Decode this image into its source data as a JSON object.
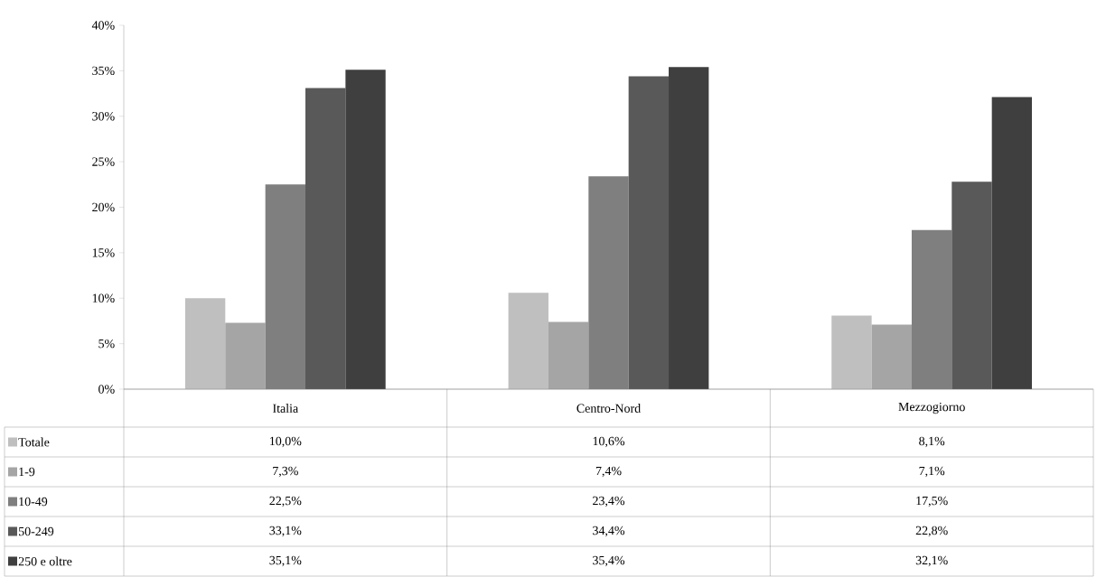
{
  "chart_data": {
    "type": "bar",
    "categories": [
      "Italia",
      "Centro-Nord",
      "Mezzogiorno"
    ],
    "series": [
      {
        "name": "Totale",
        "color": "#bfbfbf",
        "values": [
          10.0,
          10.6,
          8.1
        ],
        "value_labels": [
          "10,0%",
          "10,6%",
          "8,1%"
        ]
      },
      {
        "name": "1-9",
        "color": "#a5a5a5",
        "values": [
          7.3,
          7.4,
          7.1
        ],
        "value_labels": [
          "7,3%",
          "7,4%",
          "7,1%"
        ]
      },
      {
        "name": "10-49",
        "color": "#7f7f7f",
        "values": [
          22.5,
          23.4,
          17.5
        ],
        "value_labels": [
          "22,5%",
          "23,4%",
          "17,5%"
        ]
      },
      {
        "name": "50-249",
        "color": "#595959",
        "values": [
          33.1,
          34.4,
          22.8
        ],
        "value_labels": [
          "33,1%",
          "34,4%",
          "22,8%"
        ]
      },
      {
        "name": "250 e oltre",
        "color": "#3f3f3f",
        "values": [
          35.1,
          35.4,
          32.1
        ],
        "value_labels": [
          "35,1%",
          "35,4%",
          "32,1%"
        ]
      }
    ],
    "ylim": [
      0,
      40
    ],
    "yticks": [
      {
        "value": 0,
        "label": "0%"
      },
      {
        "value": 5,
        "label": "5%"
      },
      {
        "value": 10,
        "label": "10%"
      },
      {
        "value": 15,
        "label": "15%"
      },
      {
        "value": 20,
        "label": "20%"
      },
      {
        "value": 25,
        "label": "25%"
      },
      {
        "value": 30,
        "label": "30%"
      },
      {
        "value": 35,
        "label": "35%"
      },
      {
        "value": 40,
        "label": "40%"
      }
    ],
    "grid": false,
    "legend": "bottom"
  }
}
